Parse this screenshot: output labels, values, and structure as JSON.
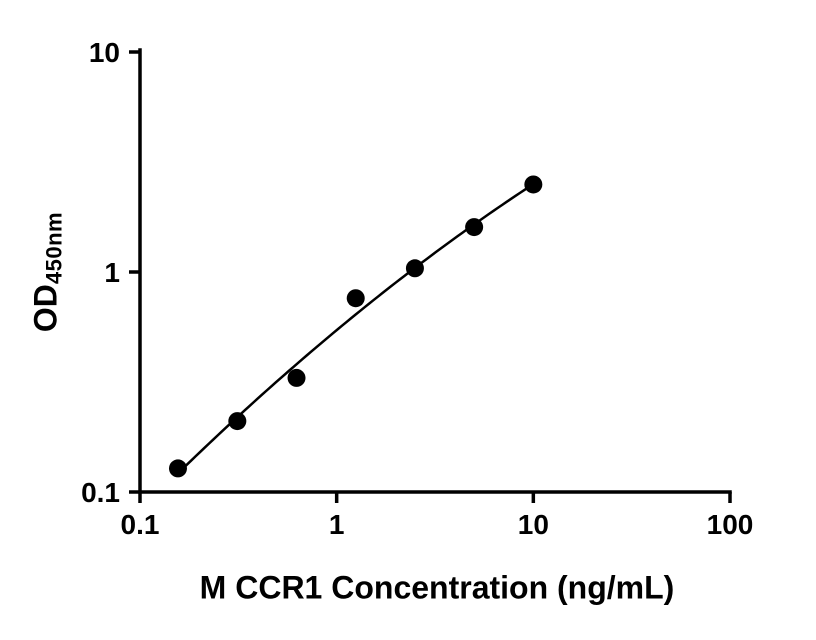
{
  "chart_data": {
    "type": "scatter",
    "title": "",
    "xlabel": "M CCR1 Concentration (ng/mL)",
    "ylabel_main": "OD",
    "ylabel_sub": "450nm",
    "x_scale": "log",
    "y_scale": "log",
    "xlim": [
      0.1,
      100
    ],
    "ylim": [
      0.1,
      10
    ],
    "x_ticks": [
      0.1,
      1,
      10,
      100
    ],
    "x_tick_labels": [
      "0.1",
      "1",
      "10",
      "100"
    ],
    "y_ticks": [
      0.1,
      1,
      10
    ],
    "y_tick_labels": [
      "0.1",
      "1",
      "10"
    ],
    "x": [
      0.156,
      0.3125,
      0.625,
      1.25,
      2.5,
      5,
      10
    ],
    "y": [
      0.128,
      0.21,
      0.33,
      0.76,
      1.04,
      1.6,
      2.5
    ],
    "curve_fit": "quadratic in log-log space",
    "grid": false,
    "legend_position": "none",
    "colors": {
      "axis": "#000000",
      "marker": "#000000",
      "line": "#000000",
      "background": "#ffffff"
    },
    "marker_radius": 9
  }
}
